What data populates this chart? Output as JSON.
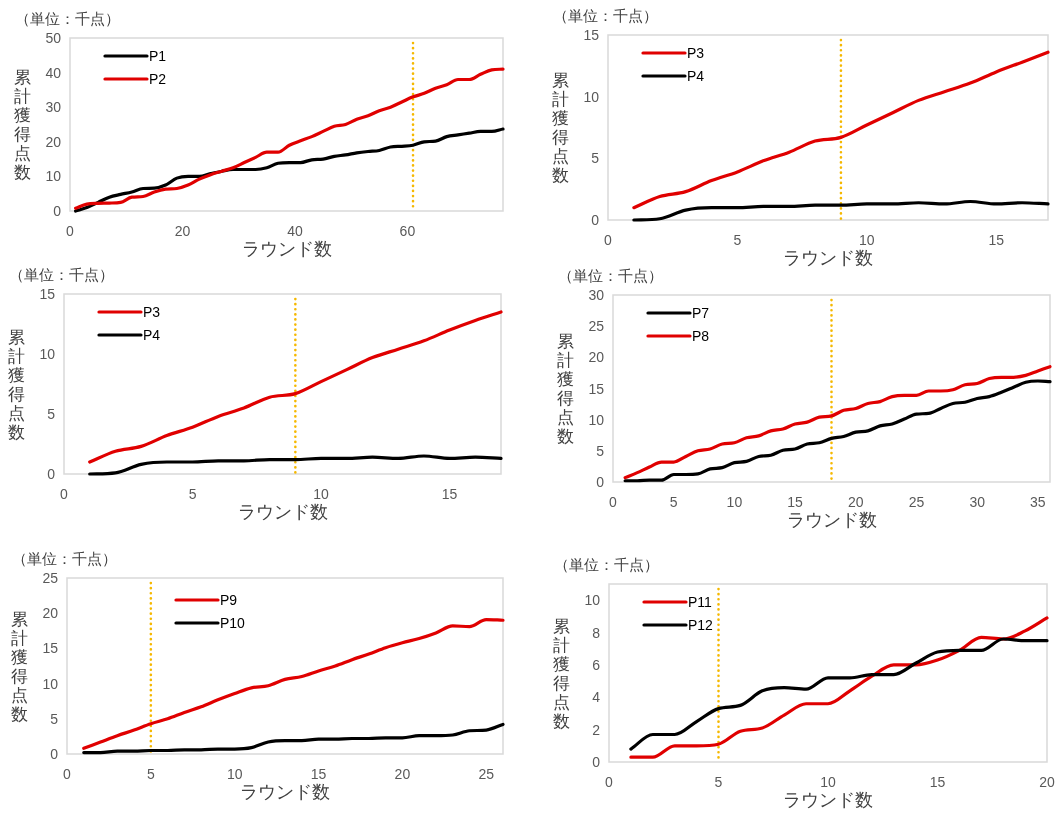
{
  "chart_data": [
    {
      "type": "line",
      "subtitle": "（単位：千点）",
      "xlabel": "ラウンド数",
      "ylabel": "累計獲得点数",
      "xlim": [
        0,
        77
      ],
      "xticks": [
        0,
        20,
        40,
        60
      ],
      "ylim": [
        0,
        50
      ],
      "yticks": [
        0,
        10,
        20,
        30,
        40,
        50
      ],
      "legend": "top left",
      "x": [
        1,
        3,
        5,
        7,
        9,
        11,
        13,
        15,
        17,
        19,
        21,
        23,
        25,
        27,
        29,
        31,
        33,
        35,
        37,
        39,
        41,
        43,
        45,
        47,
        49,
        51,
        53,
        55,
        57,
        59,
        61,
        63,
        65,
        67,
        69,
        71,
        73,
        75,
        77
      ],
      "ref_lines": [
        {
          "axis": "x",
          "value": 61,
          "color": "#f5b800",
          "line_style": "dotted"
        }
      ],
      "series": [
        {
          "name": "P1",
          "color": "#000000",
          "values": [
            0,
            1,
            2.5,
            4,
            4.8,
            5.5,
            6.5,
            6.6,
            7.5,
            9.5,
            10,
            10,
            10.8,
            11.5,
            12,
            12,
            12,
            12.5,
            13.8,
            14,
            14,
            14.8,
            15,
            15.8,
            16.2,
            16.8,
            17.2,
            17.5,
            18.5,
            18.7,
            19,
            20,
            20.2,
            21.5,
            22,
            22.5,
            23,
            23,
            23.7
          ]
        },
        {
          "name": "P2",
          "color": "#e00000",
          "values": [
            0.8,
            2,
            2.2,
            2.3,
            2.5,
            4,
            4.2,
            5.5,
            6.3,
            6.5,
            7.5,
            9.2,
            10.5,
            11.5,
            12.5,
            14,
            15.5,
            17,
            17,
            19,
            20.3,
            21.5,
            23,
            24.5,
            25,
            26.5,
            27.5,
            29,
            30,
            31.5,
            33,
            34,
            35.5,
            36.5,
            38,
            38,
            39.5,
            40.8,
            41
          ]
        }
      ]
    },
    {
      "type": "line",
      "subtitle": "（単位：千点）",
      "xlabel": "ラウンド数",
      "ylabel": "累計獲得点数",
      "xlim": [
        0,
        17
      ],
      "xticks": [
        0,
        5,
        10,
        15
      ],
      "ylim": [
        0,
        15
      ],
      "yticks": [
        0,
        5,
        10,
        15
      ],
      "legend": "top left",
      "x": [
        1,
        2,
        3,
        4,
        5,
        6,
        7,
        8,
        9,
        10,
        11,
        12,
        13,
        14,
        15,
        16,
        17
      ],
      "ref_lines": [
        {
          "axis": "x",
          "value": 9,
          "color": "#f5b800",
          "line_style": "dotted"
        }
      ],
      "series": [
        {
          "name": "P3",
          "color": "#e00000",
          "values": [
            1,
            1.9,
            2.3,
            3.2,
            3.9,
            4.8,
            5.5,
            6.4,
            6.7,
            7.7,
            8.7,
            9.7,
            10.4,
            11.1,
            12,
            12.8,
            13.6
          ]
        },
        {
          "name": "P4",
          "color": "#000000",
          "values": [
            0,
            0.1,
            0.8,
            1.0,
            1.0,
            1.1,
            1.1,
            1.2,
            1.2,
            1.3,
            1.3,
            1.4,
            1.3,
            1.5,
            1.3,
            1.4,
            1.3
          ]
        }
      ]
    },
    {
      "type": "line",
      "subtitle": "（単位：千点）",
      "xlabel": "ラウンド数",
      "ylabel": "累計獲得点数",
      "xlim": [
        0,
        17
      ],
      "xticks": [
        0,
        5,
        10,
        15
      ],
      "ylim": [
        0,
        15
      ],
      "yticks": [
        0,
        5,
        10,
        15
      ],
      "legend": "top left",
      "x": [
        1,
        2,
        3,
        4,
        5,
        6,
        7,
        8,
        9,
        10,
        11,
        12,
        13,
        14,
        15,
        16,
        17
      ],
      "ref_lines": [
        {
          "axis": "x",
          "value": 9,
          "color": "#f5b800",
          "line_style": "dotted"
        }
      ],
      "series": [
        {
          "name": "P3",
          "color": "#e00000",
          "values": [
            1,
            1.9,
            2.3,
            3.2,
            3.9,
            4.8,
            5.5,
            6.4,
            6.7,
            7.7,
            8.7,
            9.7,
            10.4,
            11.1,
            12,
            12.8,
            13.5
          ]
        },
        {
          "name": "P4",
          "color": "#000000",
          "values": [
            0,
            0.1,
            0.8,
            1.0,
            1.0,
            1.1,
            1.1,
            1.2,
            1.2,
            1.3,
            1.3,
            1.4,
            1.3,
            1.5,
            1.3,
            1.4,
            1.3
          ]
        }
      ]
    },
    {
      "type": "line",
      "subtitle": "（単位：千点）",
      "xlabel": "ラウンド数",
      "ylabel": "累計獲得点数",
      "xlim": [
        0,
        36
      ],
      "xticks": [
        0,
        5,
        10,
        15,
        20,
        25,
        30,
        35
      ],
      "ylim": [
        0,
        30
      ],
      "yticks": [
        0,
        5,
        10,
        15,
        20,
        25,
        30
      ],
      "legend": "top left",
      "x": [
        1,
        2,
        3,
        4,
        5,
        6,
        7,
        8,
        9,
        10,
        11,
        12,
        13,
        14,
        15,
        16,
        17,
        18,
        19,
        20,
        21,
        22,
        23,
        24,
        25,
        26,
        27,
        28,
        29,
        30,
        31,
        32,
        33,
        34,
        35,
        36
      ],
      "ref_lines": [
        {
          "axis": "x",
          "value": 18,
          "color": "#f5b800",
          "line_style": "dotted"
        }
      ],
      "series": [
        {
          "name": "P7",
          "color": "#000000",
          "values": [
            0.2,
            0.2,
            0.3,
            0.3,
            1.2,
            1.2,
            1.3,
            2.1,
            2.3,
            3.1,
            3.3,
            4.1,
            4.3,
            5.1,
            5.3,
            6.1,
            6.3,
            7,
            7.3,
            8,
            8.2,
            9,
            9.3,
            10.1,
            10.9,
            11,
            11.8,
            12.6,
            12.8,
            13.4,
            13.7,
            14.4,
            15.2,
            16,
            16.2,
            16.1
          ]
        },
        {
          "name": "P8",
          "color": "#e00000",
          "values": [
            0.7,
            1.5,
            2.4,
            3.2,
            3.2,
            4.1,
            5,
            5.3,
            6.1,
            6.3,
            7.1,
            7.4,
            8.2,
            8.5,
            9.3,
            9.6,
            10.4,
            10.6,
            11.5,
            11.8,
            12.6,
            12.9,
            13.7,
            13.9,
            13.9,
            14.6,
            14.6,
            14.8,
            15.6,
            15.8,
            16.6,
            16.8,
            16.8,
            17.1,
            17.8,
            18.5
          ]
        }
      ]
    },
    {
      "type": "line",
      "subtitle": "（単位：千点）",
      "xlabel": "ラウンド数",
      "ylabel": "累計獲得点数",
      "xlim": [
        0,
        26
      ],
      "xticks": [
        0,
        5,
        10,
        15,
        20,
        25
      ],
      "ylim": [
        0,
        25
      ],
      "yticks": [
        0,
        5,
        10,
        15,
        20,
        25
      ],
      "legend": "top",
      "x": [
        1,
        2,
        3,
        4,
        5,
        6,
        7,
        8,
        9,
        10,
        11,
        12,
        13,
        14,
        15,
        16,
        17,
        18,
        19,
        20,
        21,
        22,
        23,
        24,
        25,
        26
      ],
      "ref_lines": [
        {
          "axis": "x",
          "value": 5,
          "color": "#f5b800",
          "line_style": "dotted"
        }
      ],
      "series": [
        {
          "name": "P9",
          "color": "#e00000",
          "values": [
            0.8,
            1.7,
            2.6,
            3.4,
            4.3,
            5.0,
            5.9,
            6.7,
            7.7,
            8.6,
            9.4,
            9.7,
            10.6,
            11,
            11.8,
            12.5,
            13.4,
            14.2,
            15.1,
            15.8,
            16.4,
            17.2,
            18.2,
            18.1,
            19.1,
            19
          ]
        },
        {
          "name": "P10",
          "color": "#000000",
          "values": [
            0.2,
            0.2,
            0.4,
            0.4,
            0.5,
            0.5,
            0.6,
            0.6,
            0.7,
            0.7,
            0.9,
            1.7,
            1.9,
            1.9,
            2.1,
            2.1,
            2.2,
            2.2,
            2.3,
            2.3,
            2.6,
            2.6,
            2.7,
            3.3,
            3.4,
            4.2
          ]
        }
      ]
    },
    {
      "type": "line",
      "subtitle": "（単位：千点）",
      "xlabel": "ラウンド数",
      "ylabel": "累計獲得点数",
      "xlim": [
        0,
        20
      ],
      "xticks": [
        0,
        5,
        10,
        15,
        20
      ],
      "ylim": [
        0,
        11
      ],
      "yticks": [
        0,
        2,
        4,
        6,
        8,
        10
      ],
      "legend": "top left",
      "x": [
        1,
        2,
        3,
        4,
        5,
        6,
        7,
        8,
        9,
        10,
        11,
        12,
        13,
        14,
        15,
        16,
        17,
        18,
        19,
        20
      ],
      "ref_lines": [
        {
          "axis": "x",
          "value": 5,
          "color": "#f5b800",
          "line_style": "dotted"
        }
      ],
      "series": [
        {
          "name": "P11",
          "color": "#e00000",
          "values": [
            0.3,
            0.3,
            1.0,
            1.0,
            1.1,
            1.9,
            2.1,
            2.9,
            3.6,
            3.6,
            4.4,
            5.3,
            6.0,
            6.0,
            6.3,
            6.9,
            7.7,
            7.6,
            8.1,
            8.9
          ]
        },
        {
          "name": "P12",
          "color": "#000000",
          "values": [
            0.8,
            1.7,
            1.7,
            2.5,
            3.3,
            3.5,
            4.4,
            4.6,
            4.5,
            5.2,
            5.2,
            5.4,
            5.4,
            6.1,
            6.8,
            6.9,
            6.9,
            7.6,
            7.5,
            7.5
          ]
        }
      ]
    }
  ]
}
